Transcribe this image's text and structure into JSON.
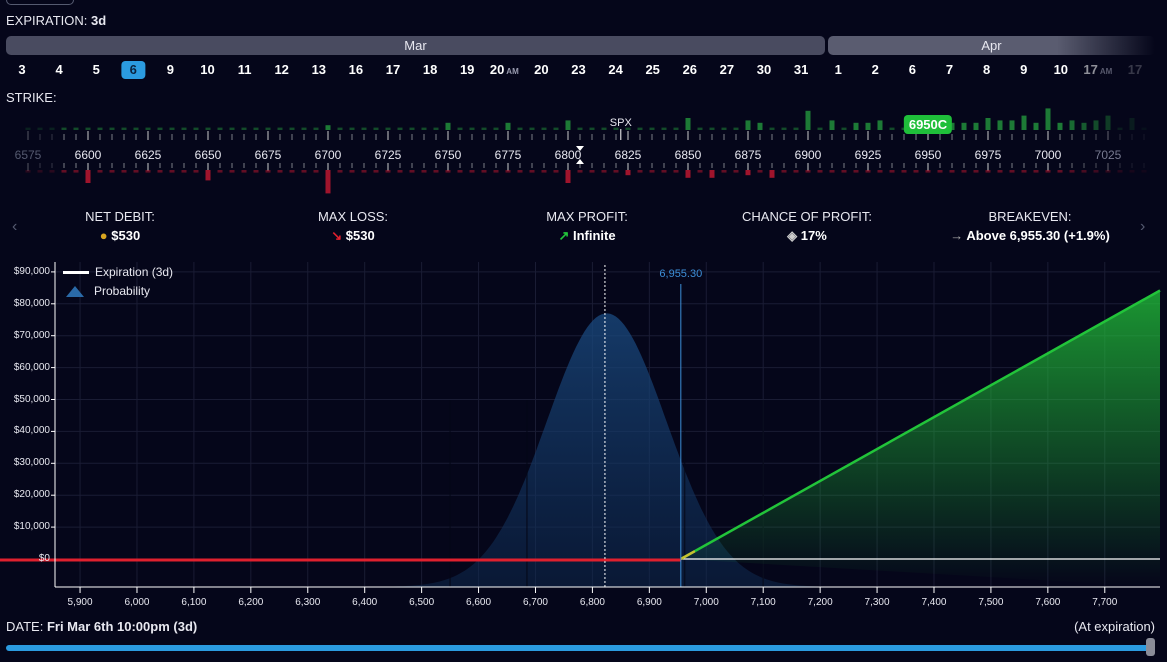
{
  "header": {
    "expiration_label": "EXPIRATION:",
    "expiration_value": "3d",
    "strike_label": "STRIKE:"
  },
  "months": [
    {
      "label": "Mar"
    },
    {
      "label": "Apr"
    }
  ],
  "dates": [
    {
      "label": "3"
    },
    {
      "label": "4"
    },
    {
      "label": "5"
    },
    {
      "label": "6",
      "selected": true
    },
    {
      "label": "9"
    },
    {
      "label": "10"
    },
    {
      "label": "11"
    },
    {
      "label": "12"
    },
    {
      "label": "13"
    },
    {
      "label": "16"
    },
    {
      "label": "17"
    },
    {
      "label": "18"
    },
    {
      "label": "19"
    },
    {
      "label": "20",
      "suffix": "AM"
    },
    {
      "label": "20"
    },
    {
      "label": "23"
    },
    {
      "label": "24"
    },
    {
      "label": "25"
    },
    {
      "label": "26"
    },
    {
      "label": "27"
    },
    {
      "label": "30"
    },
    {
      "label": "31"
    },
    {
      "label": "1"
    },
    {
      "label": "2"
    },
    {
      "label": "6"
    },
    {
      "label": "7"
    },
    {
      "label": "8"
    },
    {
      "label": "9"
    },
    {
      "label": "10"
    },
    {
      "label": "17",
      "suffix": "AM"
    },
    {
      "label": "17"
    }
  ],
  "strikes": {
    "labels": [
      "6575",
      "6600",
      "6625",
      "6650",
      "6675",
      "6700",
      "6725",
      "6750",
      "6775",
      "6800",
      "6825",
      "6850",
      "6875",
      "6900",
      "6925",
      "6950",
      "6975",
      "7000",
      "7025"
    ],
    "spot_label": "SPX",
    "spot": 6822,
    "selected_tag": "6950C",
    "call_oi": {
      "6700": 2,
      "6750": 3,
      "6775": 3,
      "6800": 4,
      "6850": 5,
      "6875": 4,
      "6880": 3,
      "6900": 8,
      "6910": 4,
      "6920": 3,
      "6925": 3,
      "6930": 4,
      "6960": 3,
      "6965": 3,
      "6970": 3,
      "6975": 5,
      "6980": 4,
      "6985": 4,
      "6990": 6,
      "6995": 3,
      "7000": 9,
      "7005": 3,
      "7010": 4,
      "7015": 3,
      "7020": 4,
      "7025": 6,
      "7035": 5
    },
    "put_oi": {
      "6600": 5,
      "6650": 4,
      "6700": 9,
      "6800": 5,
      "6825": 2,
      "6850": 3,
      "6860": 3,
      "6875": 2,
      "6885": 3
    }
  },
  "summary": [
    {
      "label": "NET DEBIT:",
      "value": "$530",
      "icon": "coins-icon"
    },
    {
      "label": "MAX LOSS:",
      "value": "$530",
      "icon": "arrow-down-right-icon"
    },
    {
      "label": "MAX PROFIT:",
      "value": "Infinite",
      "icon": "arrow-up-right-icon"
    },
    {
      "label": "CHANCE OF PROFIT:",
      "value": "17%",
      "icon": "dice-icon"
    },
    {
      "label": "BREAKEVEN:",
      "value": "Above 6,955.30 (+1.9%)",
      "icon": "arrow-right-icon"
    }
  ],
  "chart_data": {
    "type": "line",
    "legend": [
      {
        "name": "Expiration (3d)"
      },
      {
        "name": "Probability"
      }
    ],
    "legend_position": "top-left",
    "xlim": [
      5856,
      7797
    ],
    "ylim": [
      -87000,
      93000
    ],
    "xticks": [
      "5,900",
      "6,000",
      "6,100",
      "6,200",
      "6,300",
      "6,400",
      "6,500",
      "6,600",
      "6,700",
      "6,800",
      "6,900",
      "7,000",
      "7,100",
      "7,200",
      "7,300",
      "7,400",
      "7,500",
      "7,600",
      "7,700"
    ],
    "xtick_values": [
      5900,
      6000,
      6100,
      6200,
      6300,
      6400,
      6500,
      6600,
      6700,
      6800,
      6900,
      7000,
      7100,
      7200,
      7300,
      7400,
      7500,
      7600,
      7700
    ],
    "yticks": [
      "$90,000",
      "$80,000",
      "$70,000",
      "$60,000",
      "$50,000",
      "$40,000",
      "$30,000",
      "$20,000",
      "$10,000",
      "$0"
    ],
    "ytick_values": [
      90000,
      80000,
      70000,
      60000,
      50000,
      40000,
      30000,
      20000,
      10000,
      0
    ],
    "payoff": {
      "strike": 6950,
      "multiplier": 100,
      "debit": 530,
      "breakeven": 6955.3
    },
    "breakeven_label": "6,955.30",
    "spot": 6822,
    "probability": {
      "mean": 6825,
      "sd": 105,
      "peak": 77000
    },
    "grid": true,
    "colors": {
      "loss": "#e0202e",
      "profit": "#22c43a",
      "probability": "#1a4a80",
      "breakeven": "#3d8fd8"
    }
  },
  "footer": {
    "date_label": "DATE:",
    "date_value": "Fri Mar 6th 10:00pm (3d)",
    "right_label": "(At expiration)",
    "slider_value": 1.0
  }
}
